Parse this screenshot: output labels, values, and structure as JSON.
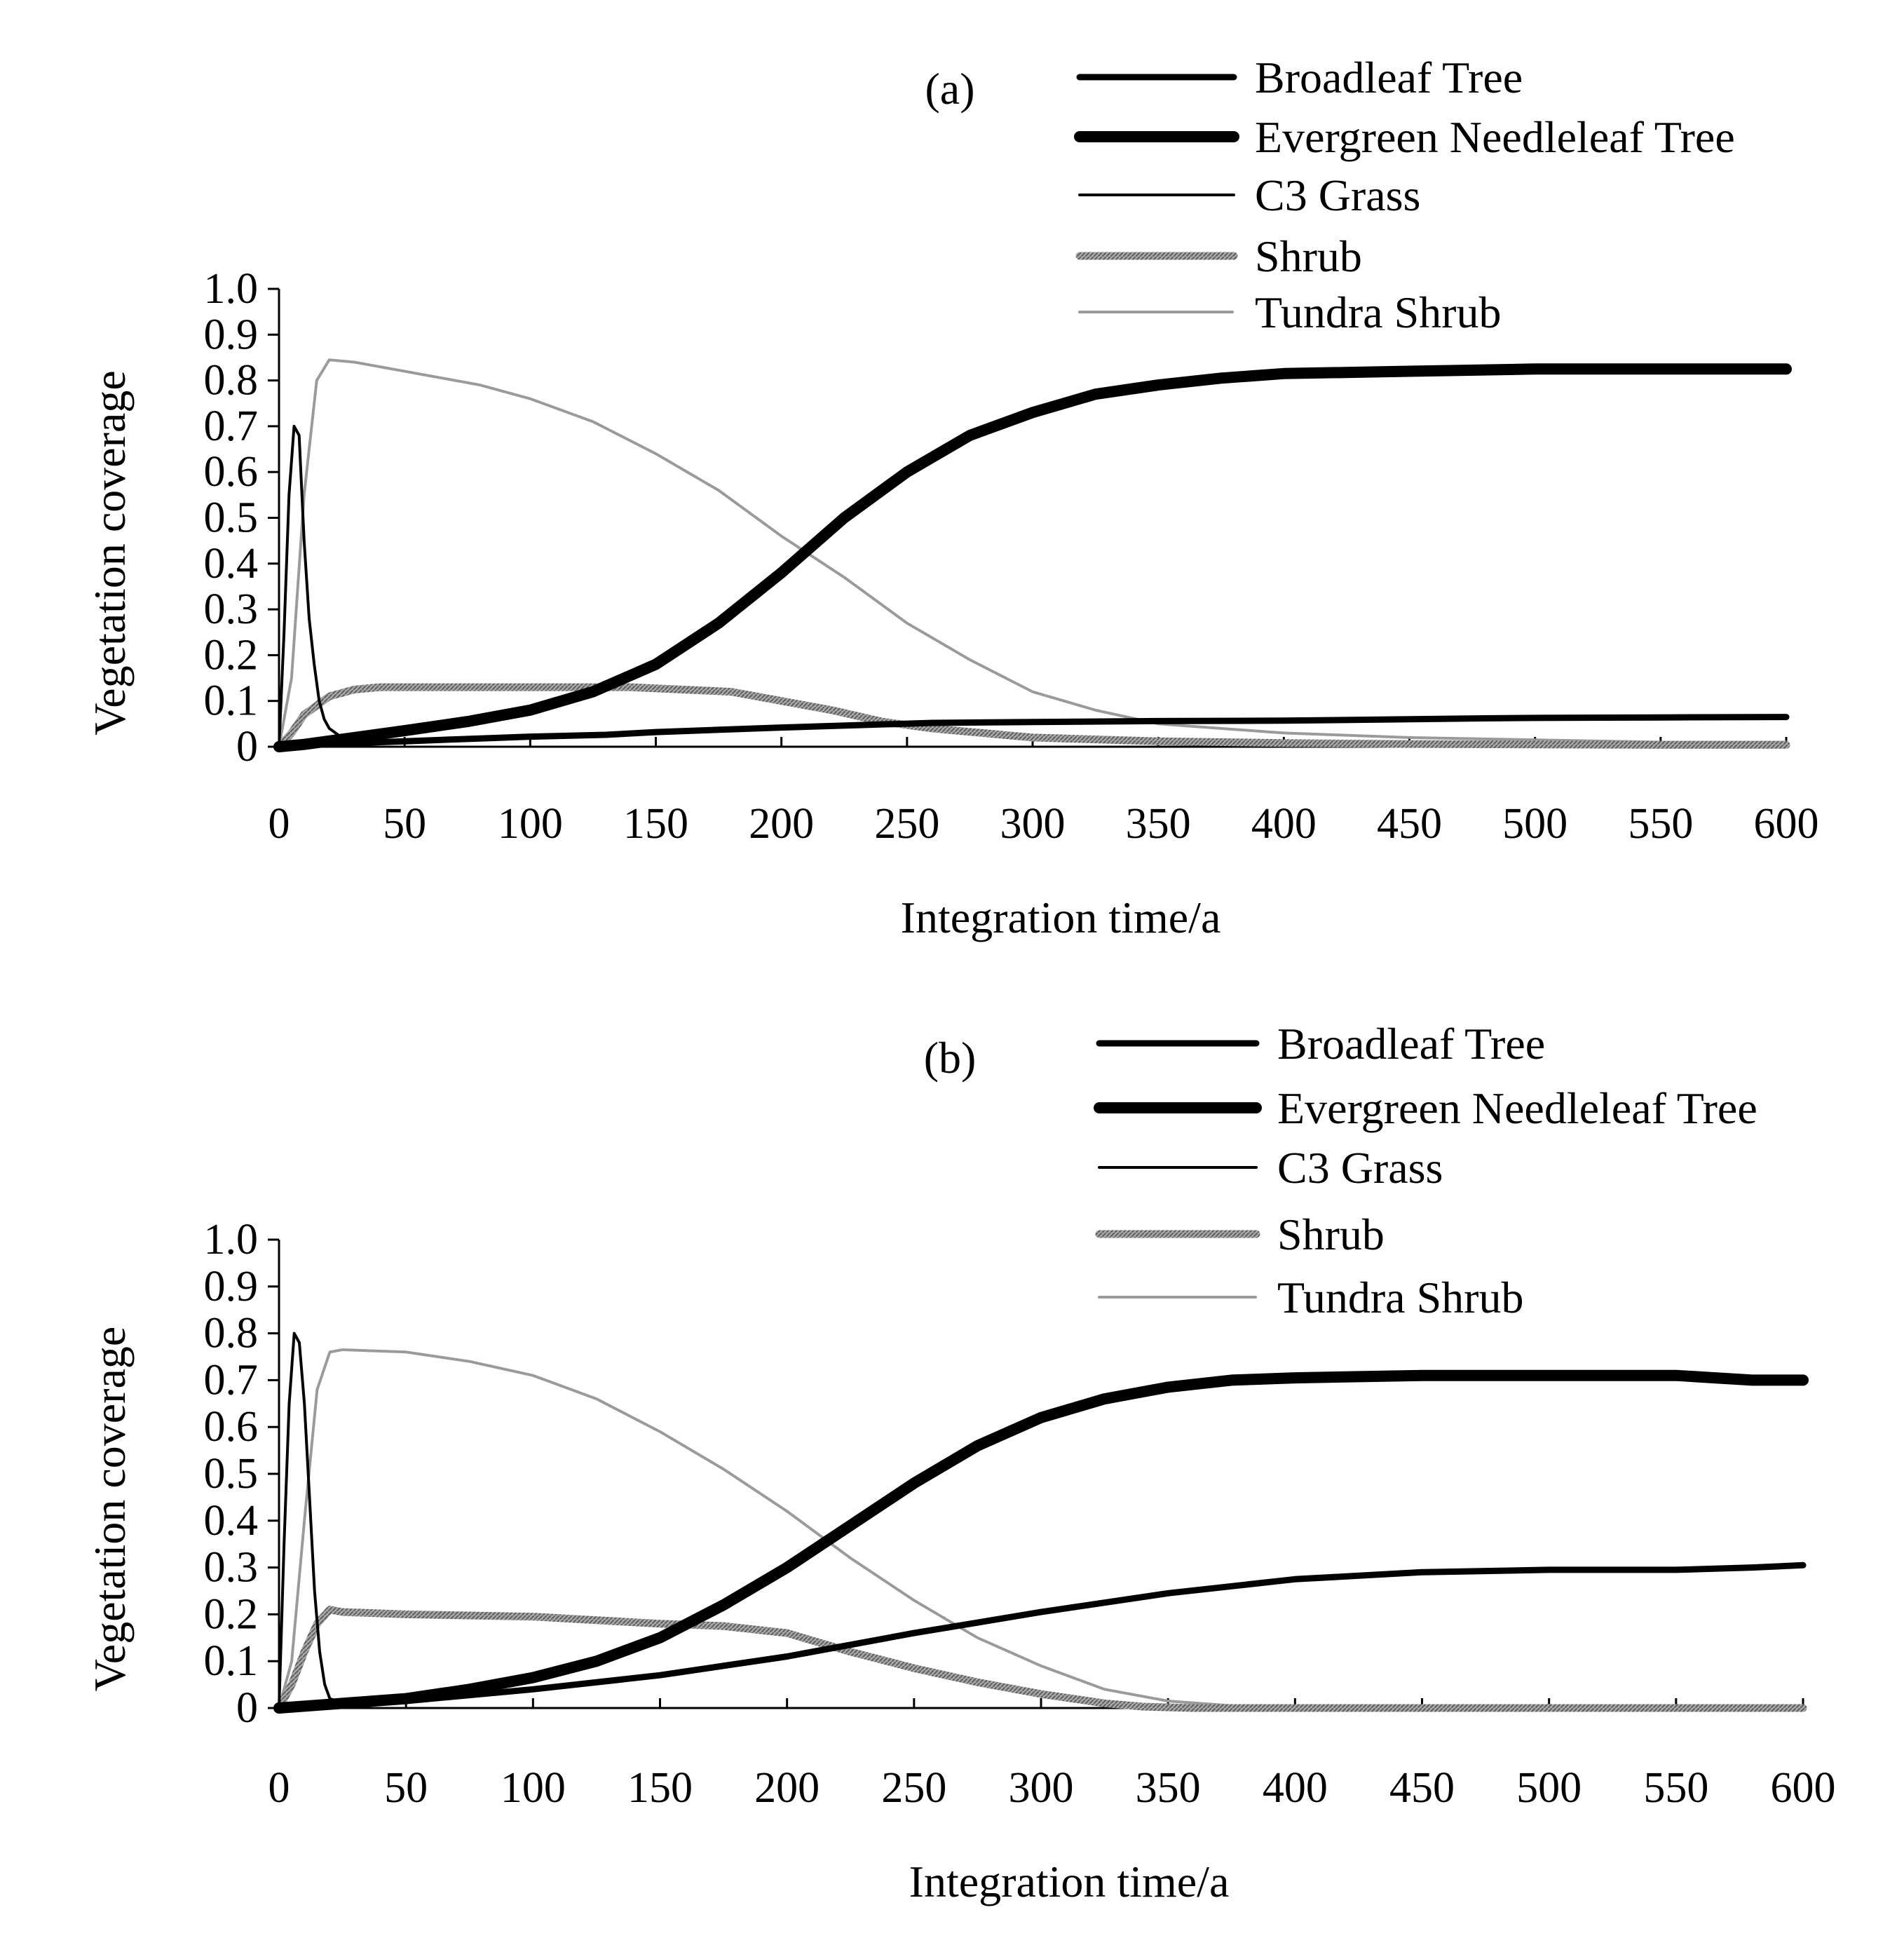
{
  "figure": {
    "panels": [
      {
        "id": "a",
        "label": "(a)"
      },
      {
        "id": "b",
        "label": "(b)"
      }
    ]
  },
  "chart_data": [
    {
      "type": "line",
      "title": "(a)",
      "xlabel": "Integration time/a",
      "ylabel": "Vegetation coverage",
      "xlim": [
        0,
        600
      ],
      "ylim": [
        0,
        1.0
      ],
      "xticks": [
        0,
        50,
        100,
        150,
        200,
        250,
        300,
        350,
        400,
        450,
        500,
        550,
        600
      ],
      "yticks": [
        0,
        0.1,
        0.2,
        0.3,
        0.4,
        0.5,
        0.6,
        0.7,
        0.8,
        0.9,
        1.0
      ],
      "ytick_labels": [
        "0",
        "0.1",
        "0.2",
        "0.3",
        "0.4",
        "0.5",
        "0.6",
        "0.7",
        "0.8",
        "0.9",
        "1.0"
      ],
      "grid": false,
      "legend_position": "top-right",
      "series": [
        {
          "name": "Broadleaf Tree",
          "style": "broadleaf",
          "color": "#000000",
          "x": [
            0,
            10,
            30,
            50,
            80,
            100,
            130,
            150,
            170,
            200,
            230,
            260,
            300,
            350,
            400,
            480,
            500,
            550,
            600
          ],
          "y": [
            0.0,
            0.003,
            0.008,
            0.012,
            0.018,
            0.022,
            0.026,
            0.032,
            0.036,
            0.042,
            0.047,
            0.052,
            0.054,
            0.056,
            0.057,
            0.062,
            0.063,
            0.064,
            0.065
          ]
        },
        {
          "name": "Evergreen Needleleaf Tree",
          "style": "needleleaf",
          "color": "#000000",
          "x": [
            0,
            10,
            30,
            50,
            75,
            100,
            125,
            150,
            175,
            200,
            225,
            250,
            275,
            300,
            325,
            350,
            375,
            400,
            450,
            500,
            550,
            600
          ],
          "y": [
            0.0,
            0.005,
            0.02,
            0.035,
            0.055,
            0.08,
            0.12,
            0.18,
            0.27,
            0.38,
            0.5,
            0.6,
            0.68,
            0.73,
            0.77,
            0.79,
            0.805,
            0.815,
            0.82,
            0.825,
            0.825,
            0.825
          ]
        },
        {
          "name": "C3 Grass",
          "style": "c3",
          "color": "#000000",
          "x": [
            0,
            2,
            4,
            6,
            8,
            10,
            12,
            14,
            16,
            18,
            20,
            25,
            30
          ],
          "y": [
            0.0,
            0.25,
            0.55,
            0.7,
            0.68,
            0.45,
            0.28,
            0.18,
            0.1,
            0.06,
            0.04,
            0.02,
            0.01
          ]
        },
        {
          "name": "Shrub",
          "style": "shrub",
          "color": "#8c8c8c",
          "x": [
            0,
            5,
            10,
            20,
            30,
            40,
            60,
            80,
            100,
            120,
            140,
            160,
            180,
            200,
            220,
            240,
            260,
            280,
            300,
            350,
            400,
            450,
            500,
            550,
            600
          ],
          "y": [
            0.0,
            0.03,
            0.07,
            0.11,
            0.125,
            0.13,
            0.13,
            0.13,
            0.13,
            0.13,
            0.13,
            0.125,
            0.12,
            0.1,
            0.08,
            0.055,
            0.04,
            0.03,
            0.02,
            0.012,
            0.008,
            0.006,
            0.005,
            0.004,
            0.004
          ]
        },
        {
          "name": "Tundra Shrub",
          "style": "tundra",
          "color": "#9a9a9a",
          "x": [
            0,
            5,
            10,
            15,
            20,
            30,
            50,
            80,
            100,
            125,
            150,
            175,
            200,
            225,
            250,
            275,
            300,
            325,
            350,
            375,
            400,
            450,
            500,
            550,
            600
          ],
          "y": [
            0.0,
            0.15,
            0.55,
            0.8,
            0.845,
            0.84,
            0.82,
            0.79,
            0.76,
            0.71,
            0.64,
            0.56,
            0.46,
            0.37,
            0.27,
            0.19,
            0.12,
            0.08,
            0.05,
            0.04,
            0.03,
            0.02,
            0.015,
            0.01,
            0.01
          ]
        }
      ]
    },
    {
      "type": "line",
      "title": "(b)",
      "xlabel": "Integration time/a",
      "ylabel": "Vegetation coverage",
      "xlim": [
        0,
        600
      ],
      "ylim": [
        0,
        1.0
      ],
      "xticks": [
        0,
        50,
        100,
        150,
        200,
        250,
        300,
        350,
        400,
        450,
        500,
        550,
        600
      ],
      "yticks": [
        0,
        0.1,
        0.2,
        0.3,
        0.4,
        0.5,
        0.6,
        0.7,
        0.8,
        0.9,
        1.0
      ],
      "ytick_labels": [
        "0",
        "0.1",
        "0.2",
        "0.3",
        "0.4",
        "0.5",
        "0.6",
        "0.7",
        "0.8",
        "0.9",
        "1.0"
      ],
      "grid": false,
      "legend_position": "top-right",
      "series": [
        {
          "name": "Broadleaf Tree",
          "style": "broadleaf",
          "color": "#000000",
          "x": [
            0,
            20,
            50,
            100,
            150,
            200,
            250,
            300,
            350,
            400,
            450,
            500,
            550,
            580,
            600
          ],
          "y": [
            0.0,
            0.005,
            0.015,
            0.04,
            0.07,
            0.11,
            0.16,
            0.205,
            0.245,
            0.275,
            0.29,
            0.295,
            0.295,
            0.3,
            0.305
          ]
        },
        {
          "name": "Evergreen Needleleaf Tree",
          "style": "needleleaf",
          "color": "#000000",
          "x": [
            0,
            20,
            50,
            75,
            100,
            125,
            150,
            175,
            200,
            225,
            250,
            275,
            300,
            325,
            350,
            375,
            400,
            450,
            500,
            550,
            580,
            600
          ],
          "y": [
            0.0,
            0.008,
            0.02,
            0.04,
            0.065,
            0.1,
            0.15,
            0.22,
            0.3,
            0.39,
            0.48,
            0.56,
            0.62,
            0.66,
            0.685,
            0.7,
            0.705,
            0.71,
            0.71,
            0.71,
            0.7,
            0.7
          ]
        },
        {
          "name": "C3 Grass",
          "style": "c3",
          "color": "#000000",
          "x": [
            0,
            2,
            4,
            6,
            8,
            10,
            12,
            14,
            16,
            18,
            20,
            25
          ],
          "y": [
            0.0,
            0.35,
            0.65,
            0.8,
            0.78,
            0.65,
            0.45,
            0.25,
            0.12,
            0.05,
            0.02,
            0.01
          ]
        },
        {
          "name": "Shrub",
          "style": "shrub",
          "color": "#8c8c8c",
          "x": [
            0,
            5,
            10,
            15,
            20,
            25,
            50,
            100,
            150,
            175,
            200,
            225,
            250,
            275,
            300,
            325,
            340,
            360,
            400,
            450,
            500,
            550,
            600
          ],
          "y": [
            0.0,
            0.05,
            0.12,
            0.18,
            0.21,
            0.205,
            0.2,
            0.195,
            0.18,
            0.175,
            0.16,
            0.12,
            0.085,
            0.055,
            0.03,
            0.01,
            0.003,
            0.0,
            0.0,
            0.0,
            0.0,
            0.0,
            0.0
          ]
        },
        {
          "name": "Tundra Shrub",
          "style": "tundra",
          "color": "#9a9a9a",
          "x": [
            0,
            5,
            10,
            15,
            20,
            25,
            50,
            75,
            100,
            125,
            150,
            175,
            200,
            225,
            250,
            275,
            300,
            325,
            350,
            375,
            400,
            450,
            500,
            550,
            600
          ],
          "y": [
            0.0,
            0.1,
            0.4,
            0.68,
            0.76,
            0.765,
            0.76,
            0.74,
            0.71,
            0.66,
            0.59,
            0.51,
            0.42,
            0.32,
            0.23,
            0.15,
            0.09,
            0.04,
            0.015,
            0.005,
            0.0,
            0.0,
            0.0,
            0.0,
            0.0
          ]
        }
      ]
    }
  ]
}
